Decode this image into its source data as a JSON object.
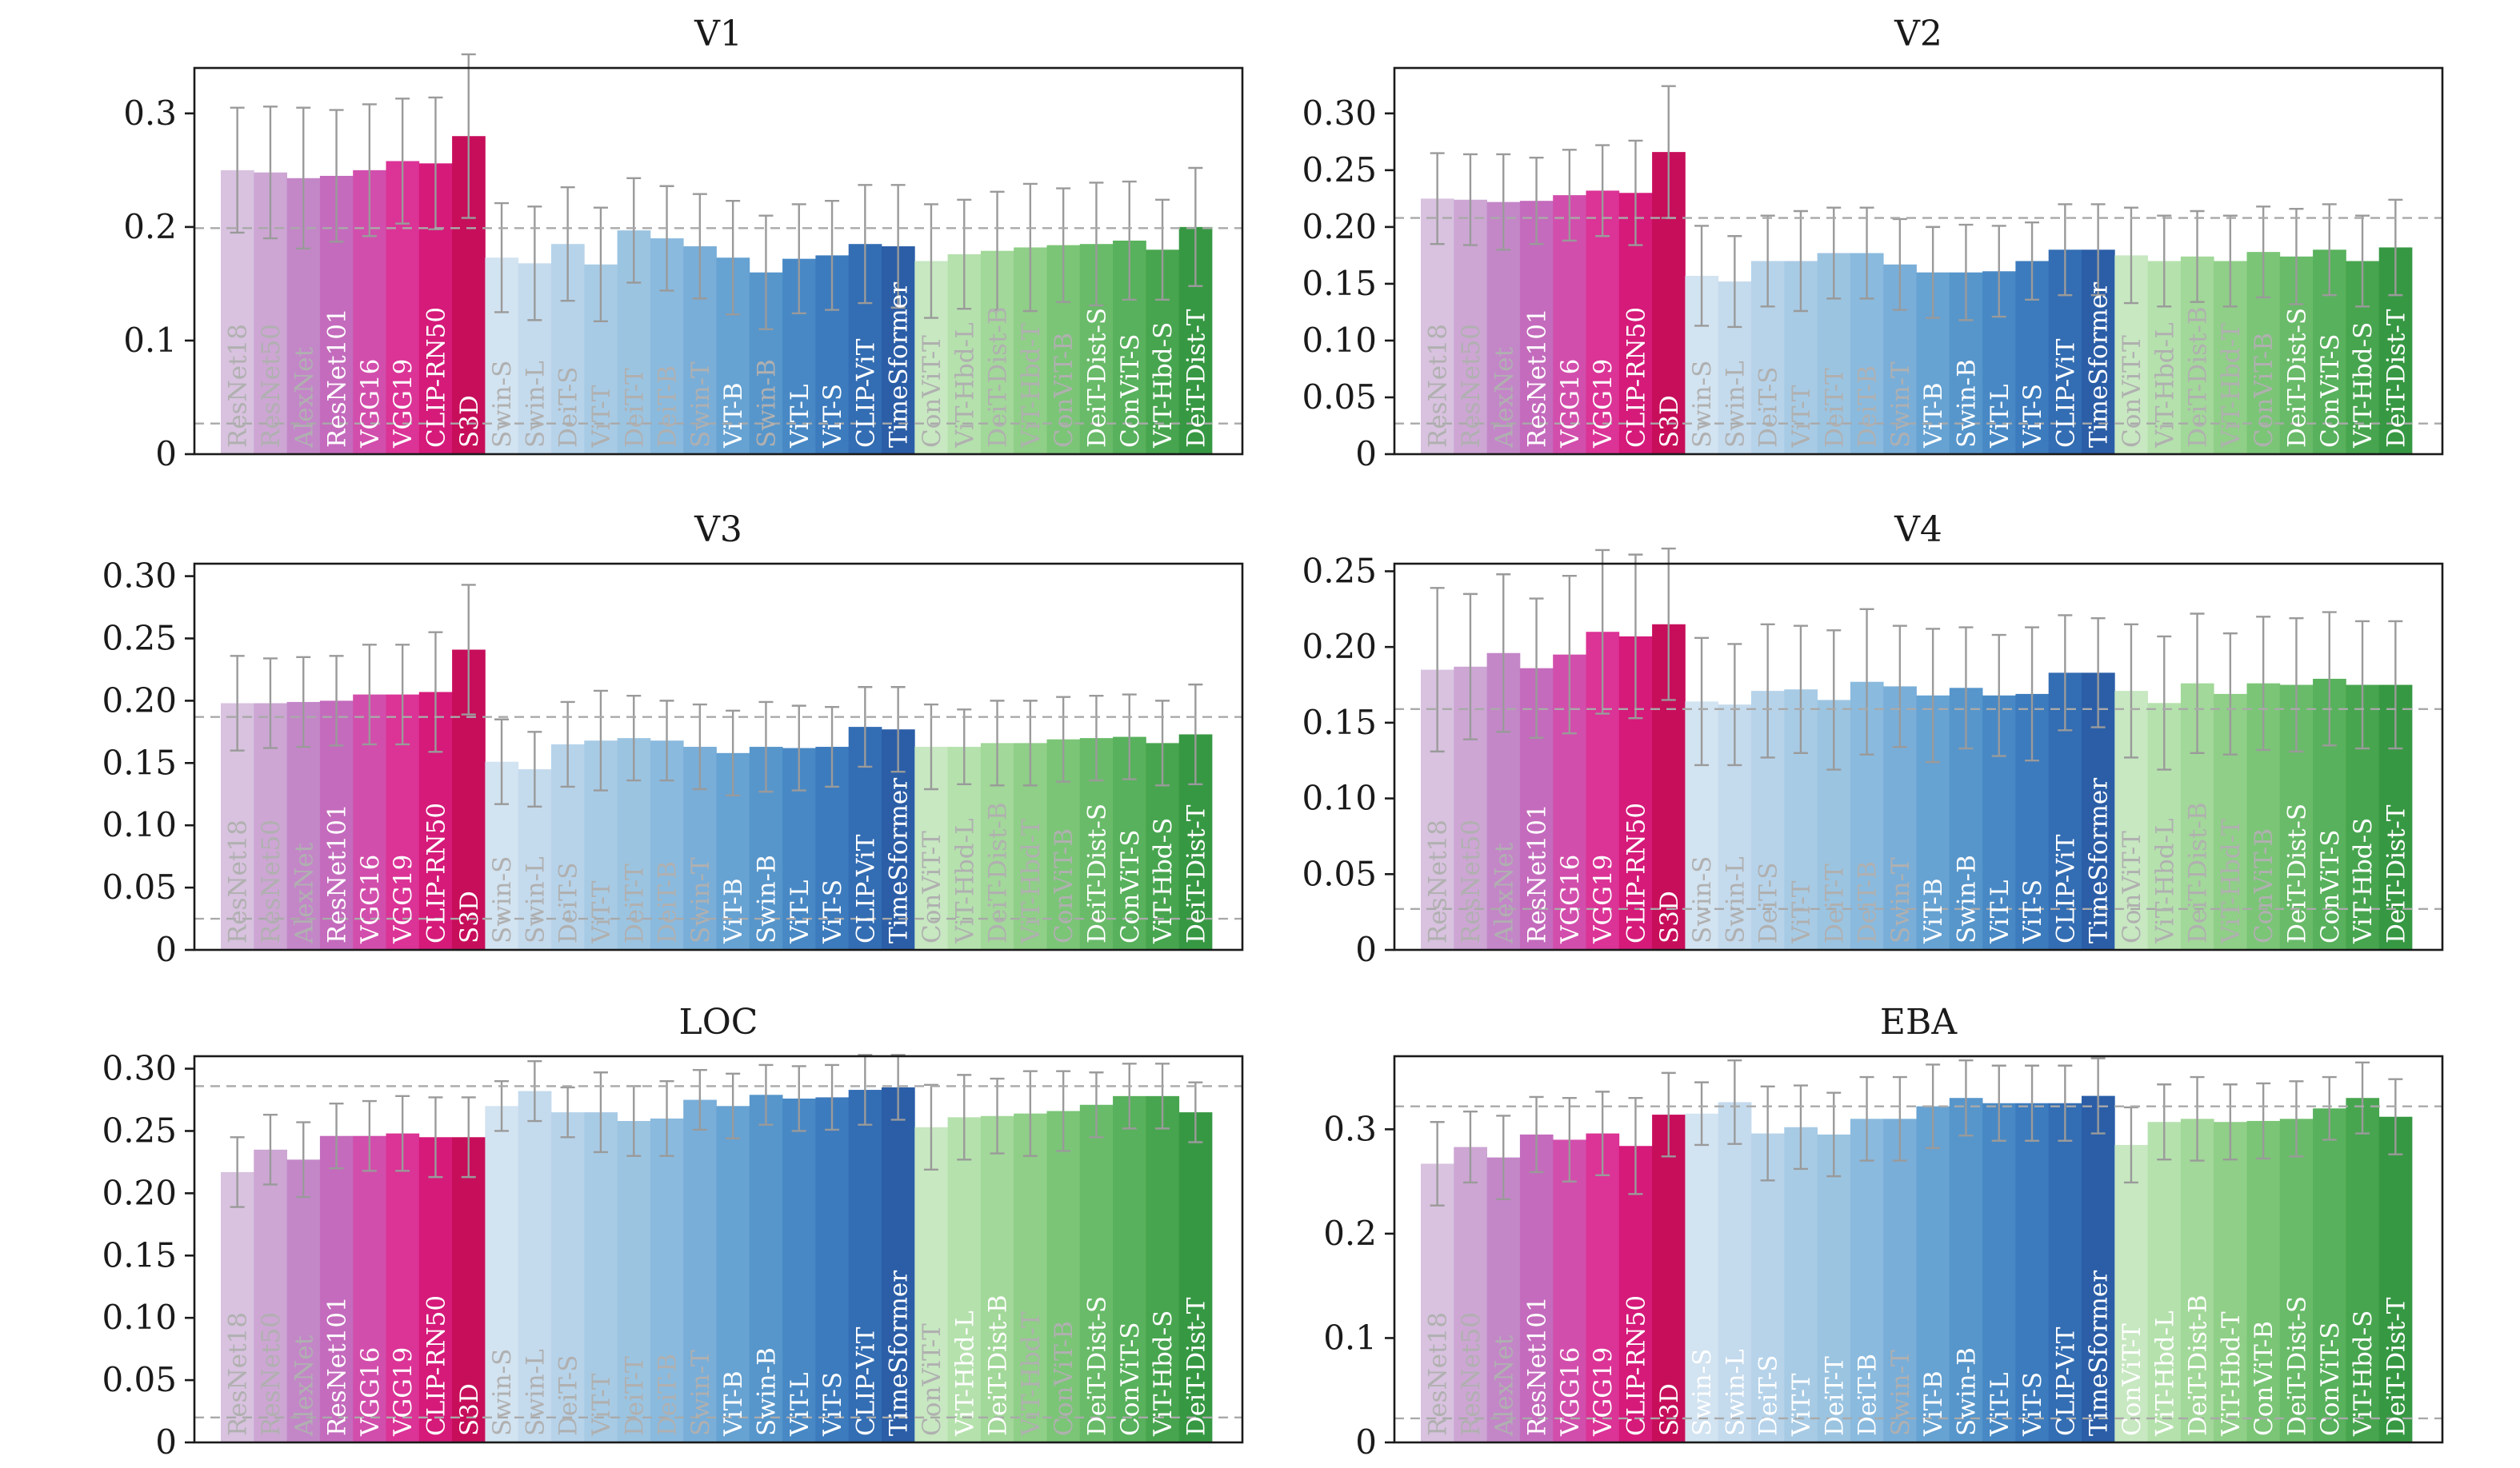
{
  "figure": {
    "categories": [
      "ResNet18",
      "ResNet50",
      "AlexNet",
      "ResNet101",
      "VGG16",
      "VGG19",
      "CLIP-RN50",
      "S3D",
      "Swin-S",
      "Swin-L",
      "DeiT-S",
      "ViT-T",
      "DeiT-T",
      "DeiT-B",
      "Swin-T",
      "ViT-B",
      "Swin-B",
      "ViT-L",
      "ViT-S",
      "CLIP-ViT",
      "TimeSformer",
      "ConViT-T",
      "ViT-Hbd-L",
      "DeiT-Dist-B",
      "ViT-Hbd-T",
      "ConViT-B",
      "DeiT-Dist-S",
      "ConViT-S",
      "ViT-Hbd-S",
      "DeiT-Dist-T"
    ],
    "colors": [
      "#d8c2df",
      "#cda6d4",
      "#c387c8",
      "#c46bbd",
      "#d24eac",
      "#db3396",
      "#d51a7a",
      "#c70e5b",
      "#d2e3f1",
      "#c4daed",
      "#b6d3ea",
      "#a8cbe5",
      "#9bc4e1",
      "#8abade",
      "#79aed8",
      "#66a2d2",
      "#5796cb",
      "#4889c5",
      "#3c7bbd",
      "#336db3",
      "#2b5ea7",
      "#c7e8c1",
      "#b5e1ad",
      "#a2d899",
      "#8fcf87",
      "#7bc577",
      "#69bb69",
      "#58b15c",
      "#48a54f",
      "#379843"
    ],
    "label_color_faded": "#b0b0b0",
    "label_color_white": "#ffffff",
    "grid": false,
    "legend": "none"
  },
  "chart_data": [
    {
      "type": "bar",
      "title": "V1",
      "ylim": [
        0,
        0.34
      ],
      "yticks": [
        0,
        0.1,
        0.2,
        0.3
      ],
      "ytick_labels": [
        "0",
        "0.1",
        "0.2",
        "0.3"
      ],
      "noise_ceiling": 0.199,
      "floor": 0.027,
      "values": [
        0.25,
        0.248,
        0.243,
        0.245,
        0.25,
        0.258,
        0.256,
        0.28,
        0.173,
        0.168,
        0.185,
        0.167,
        0.197,
        0.19,
        0.183,
        0.173,
        0.16,
        0.172,
        0.175,
        0.185,
        0.183,
        0.17,
        0.176,
        0.179,
        0.182,
        0.184,
        0.185,
        0.188,
        0.18,
        0.2
      ],
      "errors": [
        0.055,
        0.058,
        0.062,
        0.058,
        0.058,
        0.055,
        0.058,
        0.072,
        0.048,
        0.05,
        0.05,
        0.05,
        0.046,
        0.046,
        0.046,
        0.05,
        0.05,
        0.048,
        0.048,
        0.052,
        0.054,
        0.05,
        0.048,
        0.052,
        0.056,
        0.05,
        0.054,
        0.052,
        0.044,
        0.052
      ],
      "label_style": [
        "f",
        "f",
        "f",
        "w",
        "w",
        "w",
        "w",
        "w",
        "f",
        "f",
        "f",
        "f",
        "f",
        "f",
        "f",
        "w",
        "f",
        "w",
        "w",
        "w",
        "w",
        "f",
        "f",
        "f",
        "f",
        "f",
        "w",
        "w",
        "w",
        "w"
      ]
    },
    {
      "type": "bar",
      "title": "V2",
      "ylim": [
        0,
        0.34
      ],
      "yticks": [
        0,
        0.05,
        0.1,
        0.15,
        0.2,
        0.25,
        0.3
      ],
      "ytick_labels": [
        "0",
        "0.05",
        "0.10",
        "0.15",
        "0.20",
        "0.25",
        "0.30"
      ],
      "noise_ceiling": 0.208,
      "floor": 0.027,
      "values": [
        0.225,
        0.224,
        0.222,
        0.223,
        0.228,
        0.232,
        0.23,
        0.266,
        0.157,
        0.152,
        0.17,
        0.17,
        0.177,
        0.177,
        0.167,
        0.16,
        0.16,
        0.161,
        0.17,
        0.18,
        0.18,
        0.175,
        0.17,
        0.174,
        0.17,
        0.178,
        0.174,
        0.18,
        0.17,
        0.182
      ],
      "errors": [
        0.04,
        0.04,
        0.042,
        0.038,
        0.04,
        0.04,
        0.046,
        0.058,
        0.044,
        0.04,
        0.04,
        0.044,
        0.04,
        0.04,
        0.04,
        0.04,
        0.042,
        0.04,
        0.034,
        0.04,
        0.04,
        0.042,
        0.04,
        0.04,
        0.04,
        0.04,
        0.042,
        0.04,
        0.04,
        0.042
      ],
      "label_style": [
        "f",
        "f",
        "f",
        "w",
        "w",
        "w",
        "w",
        "w",
        "f",
        "f",
        "f",
        "f",
        "f",
        "f",
        "f",
        "w",
        "w",
        "w",
        "w",
        "w",
        "w",
        "f",
        "f",
        "f",
        "f",
        "f",
        "w",
        "w",
        "w",
        "w"
      ]
    },
    {
      "type": "bar",
      "title": "V3",
      "ylim": [
        0,
        0.31
      ],
      "yticks": [
        0,
        0.05,
        0.1,
        0.15,
        0.2,
        0.25,
        0.3
      ],
      "ytick_labels": [
        "0",
        "0.05",
        "0.10",
        "0.15",
        "0.20",
        "0.25",
        "0.30"
      ],
      "noise_ceiling": 0.187,
      "floor": 0.025,
      "values": [
        0.198,
        0.198,
        0.199,
        0.2,
        0.205,
        0.205,
        0.207,
        0.241,
        0.151,
        0.145,
        0.165,
        0.168,
        0.17,
        0.168,
        0.163,
        0.158,
        0.163,
        0.162,
        0.163,
        0.179,
        0.177,
        0.163,
        0.163,
        0.166,
        0.166,
        0.169,
        0.17,
        0.171,
        0.166,
        0.173
      ],
      "errors": [
        0.038,
        0.036,
        0.036,
        0.036,
        0.04,
        0.04,
        0.048,
        0.052,
        0.034,
        0.03,
        0.034,
        0.04,
        0.034,
        0.032,
        0.034,
        0.034,
        0.036,
        0.034,
        0.032,
        0.032,
        0.034,
        0.034,
        0.03,
        0.034,
        0.034,
        0.034,
        0.034,
        0.034,
        0.034,
        0.04
      ],
      "label_style": [
        "f",
        "f",
        "f",
        "w",
        "w",
        "w",
        "w",
        "w",
        "f",
        "f",
        "f",
        "f",
        "f",
        "f",
        "f",
        "w",
        "w",
        "w",
        "w",
        "w",
        "w",
        "f",
        "f",
        "f",
        "f",
        "f",
        "w",
        "w",
        "w",
        "w"
      ]
    },
    {
      "type": "bar",
      "title": "V4",
      "ylim": [
        0,
        0.255
      ],
      "yticks": [
        0,
        0.05,
        0.1,
        0.15,
        0.2,
        0.25
      ],
      "ytick_labels": [
        "0",
        "0.05",
        "0.10",
        "0.15",
        "0.20",
        "0.25"
      ],
      "noise_ceiling": 0.159,
      "floor": 0.027,
      "values": [
        0.185,
        0.187,
        0.196,
        0.186,
        0.195,
        0.21,
        0.207,
        0.215,
        0.164,
        0.162,
        0.171,
        0.172,
        0.165,
        0.177,
        0.174,
        0.168,
        0.173,
        0.168,
        0.169,
        0.183,
        0.183,
        0.171,
        0.163,
        0.176,
        0.169,
        0.176,
        0.175,
        0.179,
        0.175,
        0.175
      ],
      "errors": [
        0.054,
        0.048,
        0.052,
        0.046,
        0.052,
        0.054,
        0.054,
        0.05,
        0.042,
        0.04,
        0.044,
        0.042,
        0.046,
        0.048,
        0.04,
        0.044,
        0.04,
        0.04,
        0.044,
        0.038,
        0.036,
        0.044,
        0.044,
        0.046,
        0.04,
        0.044,
        0.044,
        0.044,
        0.042,
        0.042
      ],
      "label_style": [
        "f",
        "f",
        "f",
        "w",
        "w",
        "w",
        "w",
        "w",
        "f",
        "f",
        "f",
        "f",
        "f",
        "f",
        "f",
        "w",
        "w",
        "w",
        "w",
        "w",
        "w",
        "f",
        "f",
        "f",
        "f",
        "f",
        "w",
        "w",
        "w",
        "w"
      ]
    },
    {
      "type": "bar",
      "title": "LOC",
      "ylim": [
        0,
        0.31
      ],
      "yticks": [
        0,
        0.05,
        0.1,
        0.15,
        0.2,
        0.25,
        0.3
      ],
      "ytick_labels": [
        "0",
        "0.05",
        "0.10",
        "0.15",
        "0.20",
        "0.25",
        "0.30"
      ],
      "noise_ceiling": 0.286,
      "floor": 0.02,
      "values": [
        0.217,
        0.235,
        0.227,
        0.246,
        0.246,
        0.248,
        0.245,
        0.245,
        0.27,
        0.282,
        0.265,
        0.265,
        0.258,
        0.26,
        0.275,
        0.27,
        0.279,
        0.276,
        0.277,
        0.283,
        0.285,
        0.253,
        0.261,
        0.262,
        0.264,
        0.266,
        0.271,
        0.278,
        0.278,
        0.265
      ],
      "errors": [
        0.028,
        0.028,
        0.03,
        0.026,
        0.028,
        0.03,
        0.032,
        0.032,
        0.02,
        0.024,
        0.02,
        0.032,
        0.028,
        0.03,
        0.024,
        0.026,
        0.024,
        0.026,
        0.026,
        0.028,
        0.026,
        0.034,
        0.034,
        0.03,
        0.034,
        0.032,
        0.026,
        0.026,
        0.026,
        0.024
      ],
      "label_style": [
        "f",
        "f",
        "f",
        "w",
        "w",
        "w",
        "w",
        "w",
        "f",
        "f",
        "f",
        "f",
        "f",
        "f",
        "f",
        "w",
        "w",
        "w",
        "w",
        "w",
        "w",
        "f",
        "w",
        "w",
        "f",
        "f",
        "w",
        "w",
        "w",
        "w"
      ]
    },
    {
      "type": "bar",
      "title": "EBA",
      "ylim": [
        0,
        0.37
      ],
      "yticks": [
        0,
        0.1,
        0.2,
        0.3
      ],
      "ytick_labels": [
        "0",
        "0.1",
        "0.2",
        "0.3"
      ],
      "noise_ceiling": 0.322,
      "floor": 0.023,
      "values": [
        0.267,
        0.283,
        0.273,
        0.295,
        0.29,
        0.296,
        0.284,
        0.314,
        0.315,
        0.326,
        0.296,
        0.302,
        0.295,
        0.31,
        0.31,
        0.322,
        0.33,
        0.325,
        0.325,
        0.325,
        0.332,
        0.285,
        0.307,
        0.31,
        0.307,
        0.308,
        0.31,
        0.32,
        0.33,
        0.312
      ],
      "errors": [
        0.04,
        0.034,
        0.04,
        0.036,
        0.04,
        0.04,
        0.046,
        0.04,
        0.03,
        0.04,
        0.045,
        0.04,
        0.04,
        0.04,
        0.04,
        0.04,
        0.036,
        0.036,
        0.036,
        0.036,
        0.036,
        0.036,
        0.036,
        0.04,
        0.036,
        0.036,
        0.036,
        0.03,
        0.034,
        0.036
      ],
      "label_style": [
        "f",
        "f",
        "f",
        "w",
        "w",
        "w",
        "w",
        "w",
        "w",
        "w",
        "w",
        "w",
        "w",
        "w",
        "f",
        "w",
        "w",
        "w",
        "w",
        "w",
        "w",
        "w",
        "w",
        "w",
        "w",
        "w",
        "w",
        "w",
        "w",
        "w"
      ]
    }
  ]
}
